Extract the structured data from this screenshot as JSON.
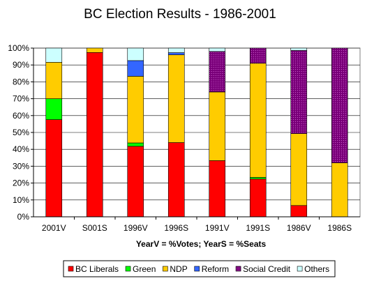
{
  "chart_data": {
    "type": "bar",
    "stacked": true,
    "title": "BC Election Results - 1986-2001",
    "xlabel": "YearV = %Votes;   YearS = %Seats",
    "ylabel": "",
    "ylim": [
      0,
      100
    ],
    "yticks": [
      "0%",
      "10%",
      "20%",
      "30%",
      "40%",
      "50%",
      "60%",
      "70%",
      "80%",
      "90%",
      "100%"
    ],
    "grid": "horizontal",
    "legend_position": "bottom",
    "categories": [
      "2001V",
      "S001S",
      "1996V",
      "1996S",
      "1991V",
      "1991S",
      "1986V",
      "1986S"
    ],
    "series": [
      {
        "name": "BC Liberals",
        "color": "#ff0000",
        "pattern": "solid",
        "values": [
          57.6,
          97.4,
          41.8,
          44.0,
          33.3,
          22.4,
          6.7,
          0
        ]
      },
      {
        "name": "Green",
        "color": "#00ff00",
        "pattern": "solid",
        "values": [
          12.4,
          0,
          2.0,
          0,
          0,
          1.0,
          0,
          0
        ]
      },
      {
        "name": "NDP",
        "color": "#ffcc00",
        "pattern": "solid",
        "values": [
          21.6,
          2.6,
          39.5,
          52.0,
          40.7,
          67.6,
          42.6,
          32.0
        ]
      },
      {
        "name": "Reform",
        "color": "#3366ff",
        "pattern": "solid",
        "values": [
          0,
          0,
          9.3,
          1.3,
          0,
          0,
          0,
          0
        ]
      },
      {
        "name": "Social Credit",
        "color": "#800080",
        "pattern": "dotted",
        "values": [
          0,
          0,
          0,
          0,
          24.0,
          9.0,
          49.3,
          68.0
        ]
      },
      {
        "name": "Others",
        "color": "#ccffff",
        "pattern": "solid",
        "values": [
          8.4,
          0,
          7.4,
          2.7,
          2.0,
          0,
          1.4,
          0
        ]
      }
    ]
  }
}
